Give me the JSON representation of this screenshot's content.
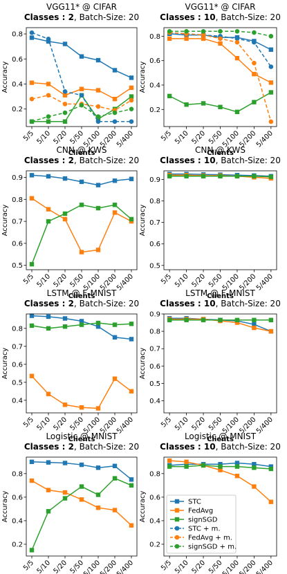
{
  "chart_data": [
    {
      "type": "line",
      "title": "VGG11* @ CIFAR",
      "subtitle_bold": "Classes : 2",
      "subtitle": ", Batch-Size: 20",
      "xlabel": "Clients",
      "ylabel": "Accuracy",
      "categories": [
        "5/5",
        "5/10",
        "5/20",
        "5/50",
        "5/100",
        "5/200",
        "5/400"
      ],
      "ylim": [
        0.06,
        0.85
      ],
      "yticks": [
        0.2,
        0.4,
        0.6,
        0.8
      ],
      "series": [
        {
          "color": "#1f77b4",
          "linestyle": "solid",
          "marker": "square",
          "values": [
            0.77,
            0.74,
            0.72,
            0.62,
            0.59,
            0.51,
            0.45
          ]
        },
        {
          "color": "#ff7f0e",
          "linestyle": "solid",
          "marker": "square",
          "values": [
            0.41,
            0.4,
            0.31,
            0.36,
            0.35,
            0.28,
            0.37
          ]
        },
        {
          "color": "#2ca02c",
          "linestyle": "solid",
          "marker": "square",
          "values": [
            0.1,
            0.1,
            0.1,
            0.31,
            0.12,
            0.2,
            0.3
          ]
        },
        {
          "color": "#1f77b4",
          "linestyle": "dashed",
          "marker": "circle",
          "values": [
            0.81,
            0.76,
            0.34,
            0.31,
            0.1,
            0.1,
            0.1
          ]
        },
        {
          "color": "#ff7f0e",
          "linestyle": "dashed",
          "marker": "circle",
          "values": [
            0.28,
            0.31,
            0.24,
            0.24,
            0.22,
            0.19,
            0.27
          ]
        },
        {
          "color": "#2ca02c",
          "linestyle": "dashed",
          "marker": "circle",
          "values": [
            0.1,
            0.14,
            0.17,
            0.23,
            0.14,
            0.17,
            0.2
          ]
        }
      ]
    },
    {
      "type": "line",
      "title": "VGG11* @ CIFAR",
      "subtitle_bold": "Classes : 10",
      "subtitle": ", Batch-Size: 20",
      "xlabel": "Clients",
      "ylabel": "Accuracy",
      "categories": [
        "5/5",
        "5/10",
        "5/20",
        "5/50",
        "5/100",
        "5/200",
        "5/400"
      ],
      "ylim": [
        0.06,
        0.87
      ],
      "yticks": [
        0.2,
        0.4,
        0.6,
        0.8
      ],
      "series": [
        {
          "color": "#1f77b4",
          "linestyle": "solid",
          "marker": "square",
          "values": [
            0.82,
            0.81,
            0.81,
            0.79,
            0.79,
            0.76,
            0.69
          ]
        },
        {
          "color": "#ff7f0e",
          "linestyle": "solid",
          "marker": "square",
          "values": [
            0.78,
            0.78,
            0.78,
            0.74,
            0.62,
            0.49,
            0.42
          ]
        },
        {
          "color": "#2ca02c",
          "linestyle": "solid",
          "marker": "square",
          "values": [
            0.31,
            0.24,
            0.25,
            0.22,
            0.18,
            0.26,
            0.34
          ]
        },
        {
          "color": "#1f77b4",
          "linestyle": "dashed",
          "marker": "circle",
          "values": [
            0.83,
            0.82,
            0.81,
            0.8,
            0.78,
            0.75,
            0.55
          ]
        },
        {
          "color": "#ff7f0e",
          "linestyle": "dashed",
          "marker": "circle",
          "values": [
            0.83,
            0.82,
            0.81,
            0.78,
            0.75,
            0.58,
            0.1
          ]
        },
        {
          "color": "#2ca02c",
          "linestyle": "dashed",
          "marker": "circle",
          "values": [
            0.84,
            0.84,
            0.84,
            0.84,
            0.84,
            0.83,
            0.8
          ]
        }
      ]
    },
    {
      "type": "line",
      "title": "CNN @ KWS",
      "subtitle_bold": "Classes : 2",
      "subtitle": ", Batch-Size: 20",
      "xlabel": "Clients",
      "ylabel": "Accuracy",
      "categories": [
        "5/5",
        "5/10",
        "5/20",
        "5/50",
        "5/100",
        "5/200",
        "5/400"
      ],
      "ylim": [
        0.48,
        0.93
      ],
      "yticks": [
        0.5,
        0.6,
        0.7,
        0.8,
        0.9
      ],
      "series": [
        {
          "color": "#1f77b4",
          "linestyle": "solid",
          "marker": "square",
          "values": [
            0.91,
            0.905,
            0.895,
            0.88,
            0.865,
            0.885,
            0.893
          ]
        },
        {
          "color": "#ff7f0e",
          "linestyle": "solid",
          "marker": "square",
          "values": [
            0.805,
            0.755,
            0.71,
            0.56,
            0.57,
            0.74,
            0.7
          ]
        },
        {
          "color": "#2ca02c",
          "linestyle": "solid",
          "marker": "square",
          "values": [
            0.505,
            0.7,
            0.735,
            0.775,
            0.76,
            0.775,
            0.71
          ]
        }
      ]
    },
    {
      "type": "line",
      "title": "CNN @ KWS",
      "subtitle_bold": "Classes : 10",
      "subtitle": ", Batch-Size: 20",
      "xlabel": "Clients",
      "ylabel": "Accuracy",
      "categories": [
        "5/5",
        "5/10",
        "5/20",
        "5/50",
        "5/100",
        "5/200",
        "5/400"
      ],
      "ylim": [
        0.48,
        0.94
      ],
      "yticks": [
        0.5,
        0.6,
        0.7,
        0.8,
        0.9
      ],
      "series": [
        {
          "color": "#1f77b4",
          "linestyle": "solid",
          "marker": "square",
          "values": [
            0.925,
            0.925,
            0.923,
            0.922,
            0.92,
            0.918,
            0.915
          ]
        },
        {
          "color": "#ff7f0e",
          "linestyle": "solid",
          "marker": "square",
          "values": [
            0.92,
            0.92,
            0.918,
            0.918,
            0.915,
            0.91,
            0.905
          ]
        },
        {
          "color": "#2ca02c",
          "linestyle": "solid",
          "marker": "square",
          "values": [
            0.915,
            0.915,
            0.915,
            0.915,
            0.915,
            0.915,
            0.912
          ]
        }
      ]
    },
    {
      "type": "line",
      "title": "LSTM @ F-MNIST",
      "subtitle_bold": "Classes : 2",
      "subtitle": ", Batch-Size: 20",
      "xlabel": "Clients",
      "ylabel": "Accuracy",
      "categories": [
        "5/5",
        "5/10",
        "5/20",
        "5/50",
        "5/100",
        "5/200",
        "5/400"
      ],
      "ylim": [
        0.33,
        0.88
      ],
      "yticks": [
        0.4,
        0.5,
        0.6,
        0.7,
        0.8
      ],
      "series": [
        {
          "color": "#1f77b4",
          "linestyle": "solid",
          "marker": "square",
          "values": [
            0.87,
            0.865,
            0.855,
            0.84,
            0.81,
            0.75,
            0.74
          ]
        },
        {
          "color": "#ff7f0e",
          "linestyle": "solid",
          "marker": "square",
          "values": [
            0.535,
            0.435,
            0.375,
            0.36,
            0.355,
            0.52,
            0.45
          ]
        },
        {
          "color": "#2ca02c",
          "linestyle": "solid",
          "marker": "square",
          "values": [
            0.815,
            0.8,
            0.81,
            0.82,
            0.83,
            0.82,
            0.825
          ]
        }
      ]
    },
    {
      "type": "line",
      "title": "LSTM @ F-MNIST",
      "subtitle_bold": "Classes : 10",
      "subtitle": ", Batch-Size: 20",
      "xlabel": "Clients",
      "ylabel": "Accuracy",
      "categories": [
        "5/5",
        "5/10",
        "5/20",
        "5/50",
        "5/100",
        "5/200",
        "5/400"
      ],
      "ylim": [
        0.33,
        0.9
      ],
      "yticks": [
        0.4,
        0.5,
        0.6,
        0.7,
        0.8,
        0.9
      ],
      "series": [
        {
          "color": "#1f77b4",
          "linestyle": "solid",
          "marker": "square",
          "values": [
            0.875,
            0.875,
            0.87,
            0.865,
            0.86,
            0.84,
            0.8
          ]
        },
        {
          "color": "#ff7f0e",
          "linestyle": "solid",
          "marker": "square",
          "values": [
            0.87,
            0.87,
            0.87,
            0.86,
            0.85,
            0.82,
            0.8
          ]
        },
        {
          "color": "#2ca02c",
          "linestyle": "solid",
          "marker": "square",
          "values": [
            0.865,
            0.865,
            0.865,
            0.865,
            0.865,
            0.865,
            0.865
          ]
        }
      ]
    },
    {
      "type": "line",
      "title": "Logistic @ MNIST",
      "subtitle_bold": "Classes : 2",
      "subtitle": ", Batch-Size: 20",
      "xlabel": "Clients",
      "ylabel": "Accuracy",
      "categories": [
        "5/5",
        "5/10",
        "5/20",
        "5/50",
        "5/100",
        "5/200",
        "5/400"
      ],
      "ylim": [
        0.1,
        0.94
      ],
      "yticks": [
        0.2,
        0.4,
        0.6,
        0.8
      ],
      "series": [
        {
          "color": "#1f77b4",
          "linestyle": "solid",
          "marker": "square",
          "values": [
            0.9,
            0.895,
            0.89,
            0.875,
            0.85,
            0.865,
            0.75
          ]
        },
        {
          "color": "#ff7f0e",
          "linestyle": "solid",
          "marker": "square",
          "values": [
            0.74,
            0.66,
            0.64,
            0.58,
            0.51,
            0.49,
            0.36
          ]
        },
        {
          "color": "#2ca02c",
          "linestyle": "solid",
          "marker": "square",
          "values": [
            0.15,
            0.48,
            0.59,
            0.69,
            0.62,
            0.76,
            0.7
          ]
        }
      ]
    },
    {
      "type": "line",
      "title": "Logistic @ MNIST",
      "subtitle_bold": "Classes : 10",
      "subtitle": ", Batch-Size: 20",
      "xlabel": "Clients",
      "ylabel": "Accuracy",
      "categories": [
        "5/5",
        "5/10",
        "5/20",
        "5/50",
        "5/100",
        "5/200",
        "5/400"
      ],
      "ylim": [
        0.1,
        0.94
      ],
      "yticks": [
        0.2,
        0.4,
        0.6,
        0.8
      ],
      "series": [
        {
          "color": "#1f77b4",
          "linestyle": "solid",
          "marker": "square",
          "values": [
            0.87,
            0.88,
            0.88,
            0.88,
            0.89,
            0.88,
            0.86
          ]
        },
        {
          "color": "#ff7f0e",
          "linestyle": "solid",
          "marker": "square",
          "values": [
            0.91,
            0.9,
            0.87,
            0.83,
            0.78,
            0.69,
            0.56
          ]
        },
        {
          "color": "#2ca02c",
          "linestyle": "solid",
          "marker": "square",
          "values": [
            0.86,
            0.86,
            0.87,
            0.86,
            0.86,
            0.85,
            0.84
          ]
        }
      ],
      "legend": {
        "loc": "lower left",
        "entries": [
          {
            "name": "STC",
            "color": "#1f77b4",
            "linestyle": "solid",
            "marker": "square"
          },
          {
            "name": "FedAvg",
            "color": "#ff7f0e",
            "linestyle": "solid",
            "marker": "square"
          },
          {
            "name": "signSGD",
            "color": "#2ca02c",
            "linestyle": "solid",
            "marker": "square"
          },
          {
            "name": "STC + m.",
            "color": "#1f77b4",
            "linestyle": "dashed",
            "marker": "circle"
          },
          {
            "name": "FedAvg + m.",
            "color": "#ff7f0e",
            "linestyle": "dashed",
            "marker": "circle"
          },
          {
            "name": "signSGD + m.",
            "color": "#2ca02c",
            "linestyle": "dashed",
            "marker": "circle"
          }
        ]
      }
    }
  ]
}
